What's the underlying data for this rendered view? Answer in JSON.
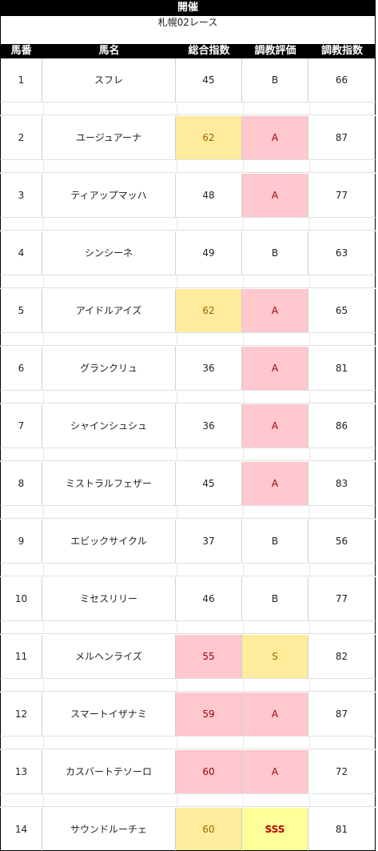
{
  "title": "開催",
  "subtitle": "札幌02レース",
  "columns": [
    "馬番",
    "馬名",
    "総合指数",
    "調教評価",
    "調教指数"
  ],
  "rows": [
    {
      "num": "1",
      "name": "スフレ",
      "index": "45",
      "eval": "B",
      "training": "66",
      "index_style": "",
      "eval_style": ""
    },
    {
      "num": "2",
      "name": "ユージュアーナ",
      "index": "62",
      "eval": "A",
      "training": "87",
      "index_style": "yellow",
      "eval_style": "pink"
    },
    {
      "num": "3",
      "name": "ティアップマッハ",
      "index": "48",
      "eval": "A",
      "training": "77",
      "index_style": "",
      "eval_style": "pink"
    },
    {
      "num": "4",
      "name": "シンシーネ",
      "index": "49",
      "eval": "B",
      "training": "63",
      "index_style": "",
      "eval_style": ""
    },
    {
      "num": "5",
      "name": "アイドルアイズ",
      "index": "62",
      "eval": "A",
      "training": "65",
      "index_style": "yellow",
      "eval_style": "pink"
    },
    {
      "num": "6",
      "name": "グランクリュ",
      "index": "36",
      "eval": "A",
      "training": "81",
      "index_style": "",
      "eval_style": "pink"
    },
    {
      "num": "7",
      "name": "シャインシュシュ",
      "index": "36",
      "eval": "A",
      "training": "86",
      "index_style": "",
      "eval_style": "pink"
    },
    {
      "num": "8",
      "name": "ミストラルフェザー",
      "index": "45",
      "eval": "A",
      "training": "83",
      "index_style": "",
      "eval_style": "pink"
    },
    {
      "num": "9",
      "name": "エビックサイクル",
      "index": "37",
      "eval": "B",
      "training": "56",
      "index_style": "",
      "eval_style": ""
    },
    {
      "num": "10",
      "name": "ミセスリリー",
      "index": "46",
      "eval": "B",
      "training": "77",
      "index_style": "",
      "eval_style": ""
    },
    {
      "num": "11",
      "name": "メルヘンライズ",
      "index": "55",
      "eval": "S",
      "training": "82",
      "index_style": "pink",
      "eval_style": "yellow"
    },
    {
      "num": "12",
      "name": "スマートイザナミ",
      "index": "59",
      "eval": "A",
      "training": "87",
      "index_style": "pink",
      "eval_style": "pink"
    },
    {
      "num": "13",
      "name": "カスバートテソーロ",
      "index": "60",
      "eval": "A",
      "training": "72",
      "index_style": "pink",
      "eval_style": "pink"
    },
    {
      "num": "14",
      "name": "サウンドルーチェ",
      "index": "60",
      "eval": "SSS",
      "training": "81",
      "index_style": "yellow",
      "eval_style": "bright"
    }
  ],
  "colors": {
    "yellow_fill": "#ffeb9c",
    "yellow_text": "#9c6500",
    "pink_fill": "#ffc7ce",
    "pink_text": "#9c0006",
    "bright_fill": "#ffff99",
    "bright_text": "#c00000"
  }
}
